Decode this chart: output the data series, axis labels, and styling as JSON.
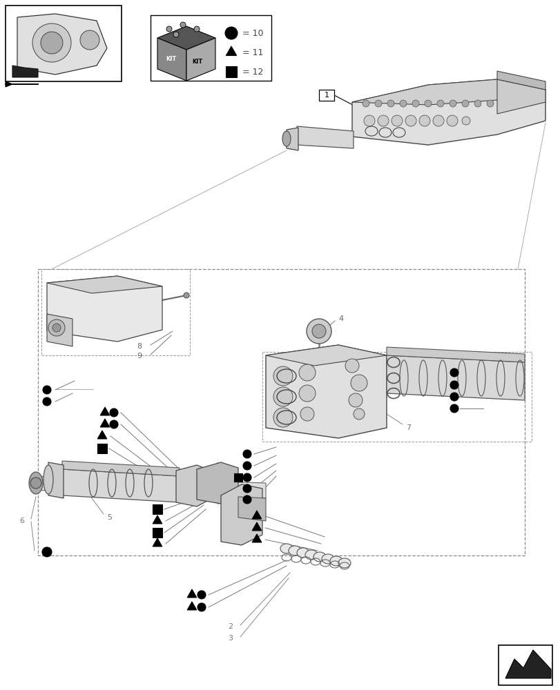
{
  "background_color": "#ffffff",
  "fig_width": 8.12,
  "fig_height": 10.0
}
